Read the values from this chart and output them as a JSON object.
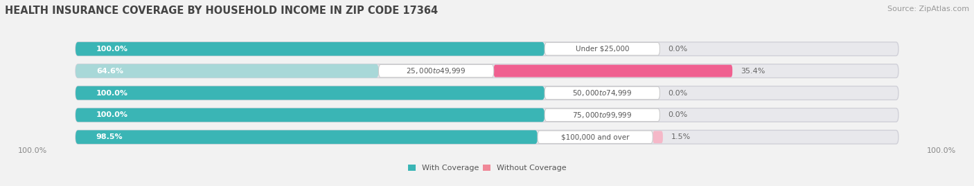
{
  "title": "HEALTH INSURANCE COVERAGE BY HOUSEHOLD INCOME IN ZIP CODE 17364",
  "source": "Source: ZipAtlas.com",
  "categories": [
    "Under $25,000",
    "$25,000 to $49,999",
    "$50,000 to $74,999",
    "$75,000 to $99,999",
    "$100,000 and over"
  ],
  "with_coverage": [
    100.0,
    64.6,
    100.0,
    100.0,
    98.5
  ],
  "without_coverage": [
    0.0,
    35.4,
    0.0,
    0.0,
    1.5
  ],
  "color_with": "#3ab5b5",
  "color_without": "#f08080",
  "color_with_light": "#a8d8d8",
  "bg_color": "#f2f2f2",
  "bar_bg_color": "#e8e8ec",
  "legend_with": "With Coverage",
  "legend_without": "Without Coverage",
  "x_left_label": "100.0%",
  "x_right_label": "100.0%",
  "title_fontsize": 10.5,
  "source_fontsize": 8,
  "bar_label_fontsize": 8,
  "category_fontsize": 7.5,
  "axis_label_fontsize": 8
}
